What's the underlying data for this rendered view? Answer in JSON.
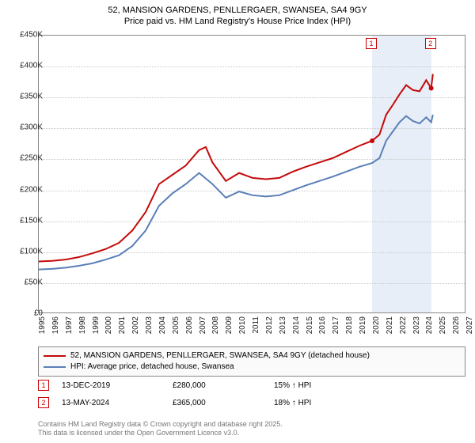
{
  "title": {
    "line1": "52, MANSION GARDENS, PENLLERGAER, SWANSEA, SA4 9GY",
    "line2": "Price paid vs. HM Land Registry's House Price Index (HPI)"
  },
  "chart": {
    "type": "line",
    "x_start_year": 1995,
    "x_end_year": 2027,
    "y_min": 0,
    "y_max": 450000,
    "y_tick_step": 50000,
    "y_tick_labels": [
      "£0",
      "£50K",
      "£100K",
      "£150K",
      "£200K",
      "£250K",
      "£300K",
      "£350K",
      "£400K",
      "£450K"
    ],
    "x_ticks": [
      1995,
      1996,
      1997,
      1998,
      1999,
      2000,
      2001,
      2002,
      2003,
      2004,
      2005,
      2006,
      2007,
      2008,
      2009,
      2010,
      2011,
      2012,
      2013,
      2014,
      2015,
      2016,
      2017,
      2018,
      2019,
      2020,
      2021,
      2022,
      2023,
      2024,
      2025,
      2026,
      2027
    ],
    "background_color": "#ffffff",
    "grid_color": "#c8c8c8",
    "highlight_band": {
      "from_year": 2019.95,
      "to_year": 2024.37,
      "color": "#e8eef7"
    },
    "series": [
      {
        "id": "price_paid",
        "label": "52, MANSION GARDENS, PENLLERGAER, SWANSEA, SA4 9GY (detached house)",
        "color": "#c40a0a",
        "line_width": 2,
        "points": [
          [
            1995,
            85000
          ],
          [
            1996,
            86000
          ],
          [
            1997,
            88000
          ],
          [
            1998,
            92000
          ],
          [
            1999,
            98000
          ],
          [
            2000,
            105000
          ],
          [
            2001,
            115000
          ],
          [
            2002,
            135000
          ],
          [
            2003,
            165000
          ],
          [
            2004,
            210000
          ],
          [
            2005,
            225000
          ],
          [
            2006,
            240000
          ],
          [
            2007,
            265000
          ],
          [
            2007.5,
            270000
          ],
          [
            2008,
            245000
          ],
          [
            2009,
            215000
          ],
          [
            2010,
            228000
          ],
          [
            2011,
            220000
          ],
          [
            2012,
            218000
          ],
          [
            2013,
            220000
          ],
          [
            2014,
            230000
          ],
          [
            2015,
            238000
          ],
          [
            2016,
            245000
          ],
          [
            2017,
            252000
          ],
          [
            2018,
            262000
          ],
          [
            2019,
            272000
          ],
          [
            2019.95,
            280000
          ],
          [
            2020.5,
            290000
          ],
          [
            2021,
            322000
          ],
          [
            2021.5,
            338000
          ],
          [
            2022,
            355000
          ],
          [
            2022.5,
            370000
          ],
          [
            2023,
            362000
          ],
          [
            2023.5,
            360000
          ],
          [
            2024,
            378000
          ],
          [
            2024.37,
            365000
          ],
          [
            2024.5,
            388000
          ]
        ]
      },
      {
        "id": "hpi",
        "label": "HPI: Average price, detached house, Swansea",
        "color": "#5a7fb8",
        "line_width": 2,
        "points": [
          [
            1995,
            72000
          ],
          [
            1996,
            73000
          ],
          [
            1997,
            75000
          ],
          [
            1998,
            78000
          ],
          [
            1999,
            82000
          ],
          [
            2000,
            88000
          ],
          [
            2001,
            95000
          ],
          [
            2002,
            110000
          ],
          [
            2003,
            135000
          ],
          [
            2004,
            175000
          ],
          [
            2005,
            195000
          ],
          [
            2006,
            210000
          ],
          [
            2007,
            228000
          ],
          [
            2008,
            210000
          ],
          [
            2009,
            188000
          ],
          [
            2010,
            198000
          ],
          [
            2011,
            192000
          ],
          [
            2012,
            190000
          ],
          [
            2013,
            192000
          ],
          [
            2014,
            200000
          ],
          [
            2015,
            208000
          ],
          [
            2016,
            215000
          ],
          [
            2017,
            222000
          ],
          [
            2018,
            230000
          ],
          [
            2019,
            238000
          ],
          [
            2019.95,
            244000
          ],
          [
            2020.5,
            252000
          ],
          [
            2021,
            280000
          ],
          [
            2021.5,
            295000
          ],
          [
            2022,
            310000
          ],
          [
            2022.5,
            320000
          ],
          [
            2023,
            312000
          ],
          [
            2023.5,
            308000
          ],
          [
            2024,
            318000
          ],
          [
            2024.37,
            310000
          ],
          [
            2024.5,
            322000
          ]
        ]
      }
    ],
    "markers": [
      {
        "id": "1",
        "year": 2019.95,
        "value": 280000
      },
      {
        "id": "2",
        "year": 2024.37,
        "value": 365000
      }
    ]
  },
  "legend": {
    "rows": [
      {
        "color": "#c40a0a",
        "label": "52, MANSION GARDENS, PENLLERGAER, SWANSEA, SA4 9GY (detached house)"
      },
      {
        "color": "#5a7fb8",
        "label": "HPI: Average price, detached house, Swansea"
      }
    ]
  },
  "sales": [
    {
      "marker": "1",
      "date": "13-DEC-2019",
      "price": "£280,000",
      "hpi": "15% ↑ HPI"
    },
    {
      "marker": "2",
      "date": "13-MAY-2024",
      "price": "£365,000",
      "hpi": "18% ↑ HPI"
    }
  ],
  "footer": {
    "line1": "Contains HM Land Registry data © Crown copyright and database right 2025.",
    "line2": "This data is licensed under the Open Government Licence v3.0."
  }
}
